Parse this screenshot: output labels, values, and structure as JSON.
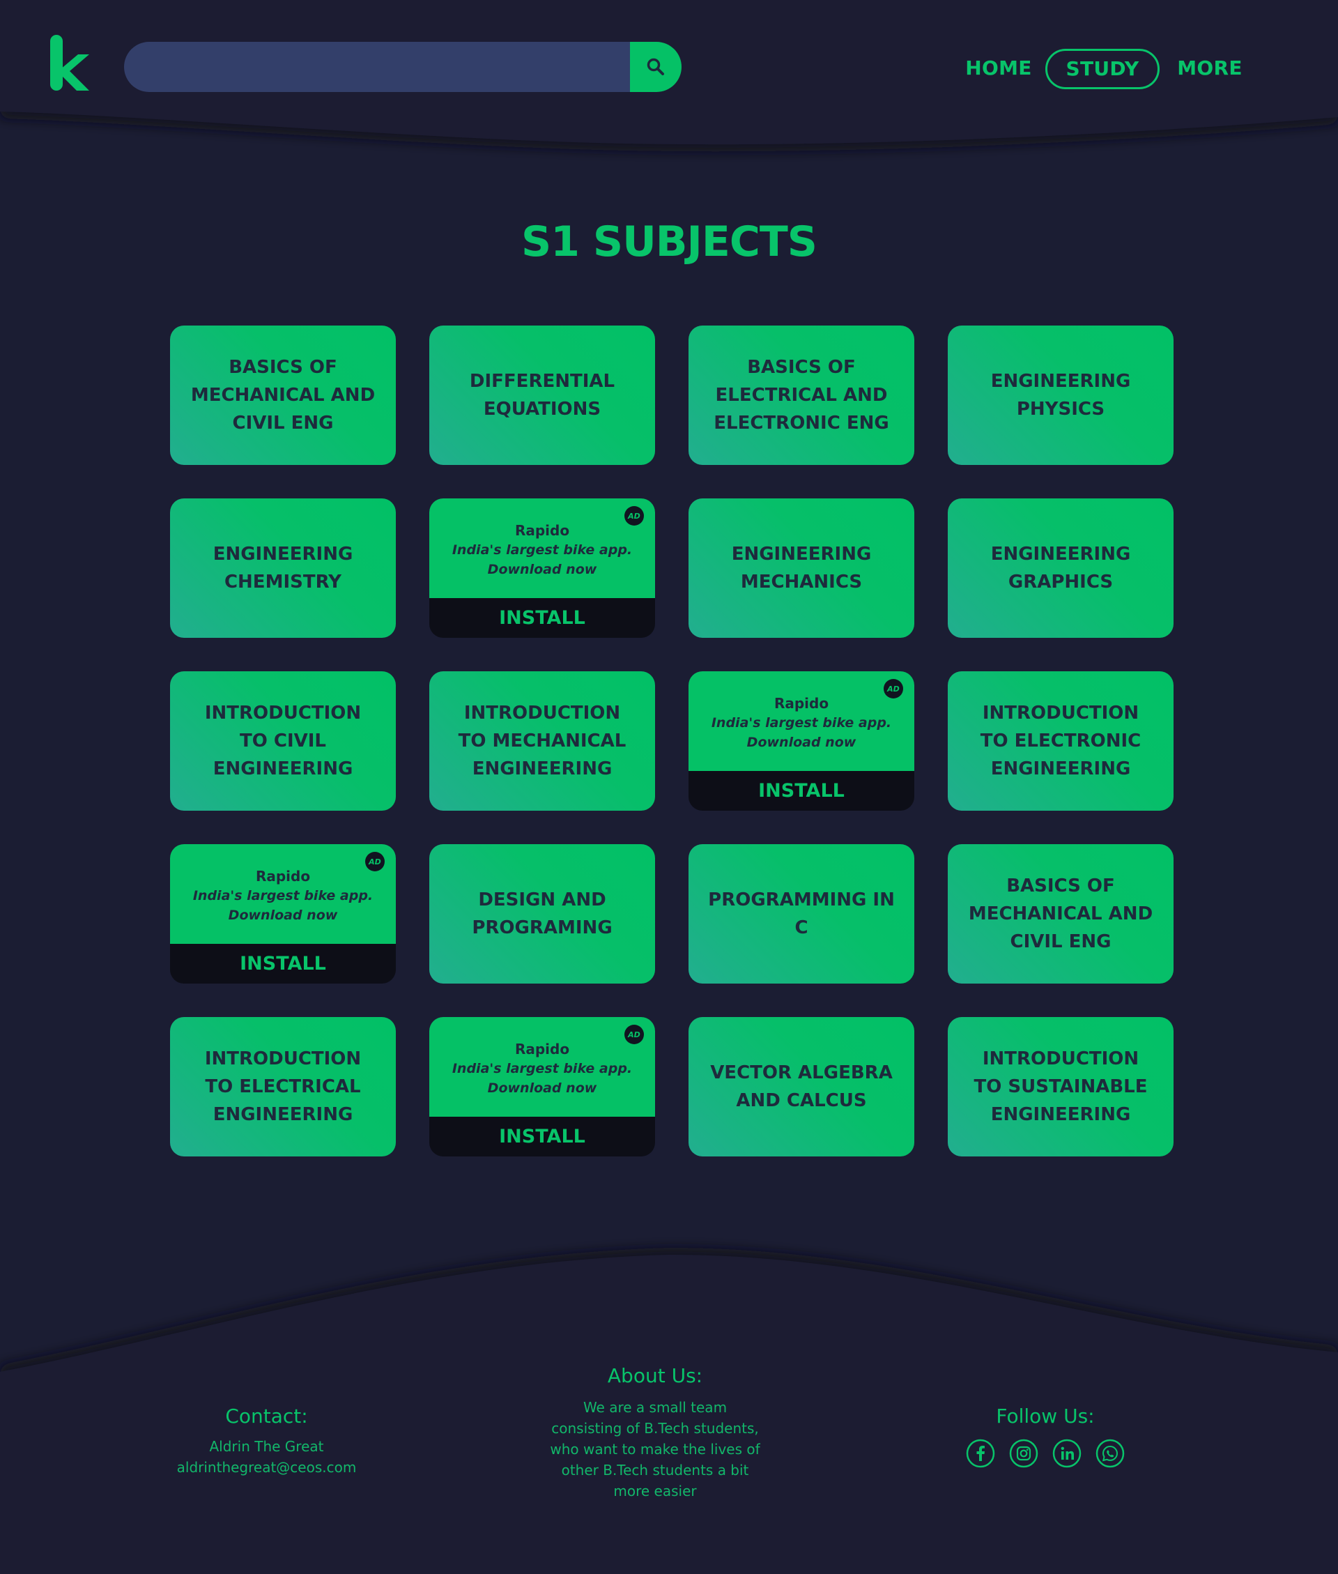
{
  "brand": {
    "logo_letter": "k",
    "accent": "#08c46a",
    "background": "#1b1d33"
  },
  "search": {
    "placeholder": "",
    "value": "",
    "button_icon": "search-icon"
  },
  "nav": {
    "home": "HOME",
    "study": "STUDY",
    "more": "MORE",
    "active": "STUDY"
  },
  "page": {
    "title": "S1 SUBJECTS"
  },
  "cards": [
    {
      "type": "subject",
      "label": "BASICS OF MECHANICAL AND CIVIL ENG"
    },
    {
      "type": "subject",
      "label": "DIFFERENTIAL EQUATIONS"
    },
    {
      "type": "subject",
      "label": "BASICS OF ELECTRICAL AND ELECTRONIC ENG"
    },
    {
      "type": "subject",
      "label": "ENGINEERING PHYSICS"
    },
    {
      "type": "subject",
      "label": "ENGINEERING CHEMISTRY"
    },
    {
      "type": "ad",
      "brand": "Rapido",
      "tagline": "India's largest bike app.",
      "cta": "Download now",
      "button": "INSTALL",
      "badge": "AD"
    },
    {
      "type": "subject",
      "label": "ENGINEERING MECHANICS"
    },
    {
      "type": "subject",
      "label": "ENGINEERING GRAPHICS"
    },
    {
      "type": "subject",
      "label": "INTRODUCTION TO CIVIL ENGINEERING"
    },
    {
      "type": "subject",
      "label": "INTRODUCTION TO MECHANICAL ENGINEERING"
    },
    {
      "type": "ad",
      "brand": "Rapido",
      "tagline": "India's largest bike app.",
      "cta": "Download now",
      "button": "INSTALL",
      "badge": "AD"
    },
    {
      "type": "subject",
      "label": "INTRODUCTION TO ELECTRONIC ENGINEERING"
    },
    {
      "type": "ad",
      "brand": "Rapido",
      "tagline": "India's largest bike app.",
      "cta": "Download now",
      "button": "INSTALL",
      "badge": "AD"
    },
    {
      "type": "subject",
      "label": "DESIGN AND PROGRAMING"
    },
    {
      "type": "subject",
      "label": "PROGRAMMING IN C"
    },
    {
      "type": "subject",
      "label": "BASICS OF MECHANICAL AND CIVIL ENG"
    },
    {
      "type": "subject",
      "label": "INTRODUCTION TO ELECTRICAL ENGINEERING"
    },
    {
      "type": "ad",
      "brand": "Rapido",
      "tagline": "India's largest bike app.",
      "cta": "Download now",
      "button": "INSTALL",
      "badge": "AD"
    },
    {
      "type": "subject",
      "label": "VECTOR ALGEBRA AND CALCUS"
    },
    {
      "type": "subject",
      "label": "INTRODUCTION TO SUSTAINABLE ENGINEERING"
    }
  ],
  "footer": {
    "contact": {
      "heading": "Contact:",
      "name": "Aldrin The Great",
      "email": "aldrinthegreat@ceos.com"
    },
    "about": {
      "heading": "About Us:",
      "text": "We are a small team consisting of B.Tech students, who want to make the lives of other B.Tech students a bit more easier"
    },
    "follow": {
      "heading": "Follow Us:",
      "icons": [
        "facebook-icon",
        "instagram-icon",
        "linkedin-icon",
        "whatsapp-icon"
      ]
    }
  }
}
